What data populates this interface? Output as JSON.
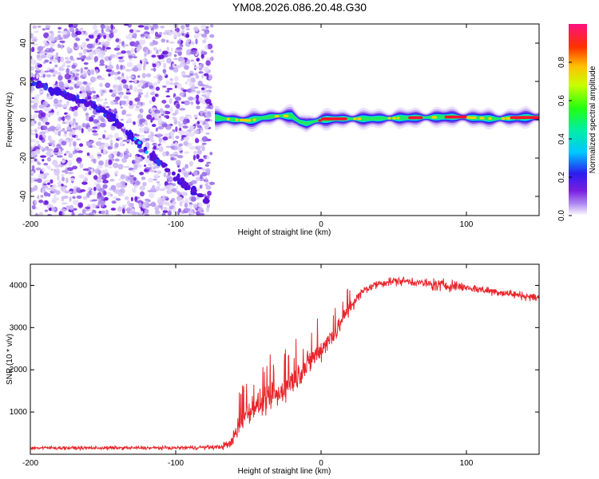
{
  "title": "YM08.2026.086.20.48.G30",
  "chart_data": [
    {
      "type": "heatmap",
      "xlabel": "Height of straight line (km)",
      "ylabel": "Frequency (Hz)",
      "xlim": [
        -200,
        150
      ],
      "ylim": [
        -50,
        50
      ],
      "xticks": [
        -200,
        -100,
        0,
        100
      ],
      "xtick_labels": [
        "-200",
        "-100",
        "0",
        "100"
      ],
      "yticks": [
        -40,
        -20,
        0,
        20,
        40
      ],
      "ytick_labels": [
        "-40",
        "-20",
        "0",
        "20",
        "40"
      ],
      "colorbar": {
        "label": "Normalized spectral amplitude",
        "range": [
          0,
          1
        ],
        "ticks": [
          0.0,
          0.2,
          0.4,
          0.6,
          0.8
        ],
        "tick_labels": [
          "0.0",
          "0.2",
          "0.4",
          "0.6",
          "0.8"
        ]
      },
      "noise_region": {
        "x_range": [
          -200,
          -75
        ],
        "description_level": "low amplitude speckle"
      },
      "diagonal_trace": {
        "x": [
          -200,
          -150,
          -100,
          -75
        ],
        "y": [
          20,
          5,
          -30,
          -45
        ]
      },
      "signal_band": {
        "x": [
          -73,
          -60,
          -50,
          -40,
          -30,
          -20,
          -15,
          -10,
          0,
          10,
          30,
          60,
          90,
          120,
          150
        ],
        "y": [
          1,
          0,
          -0.5,
          1,
          2,
          2,
          -1,
          -2,
          0,
          0.5,
          0.5,
          1,
          1.5,
          0.5,
          1.5
        ]
      }
    },
    {
      "type": "line",
      "xlabel": "Height of straight line (km)",
      "ylabel": "SNR (10 * v/v)",
      "xlim": [
        -200,
        150
      ],
      "ylim": [
        0,
        4500
      ],
      "xticks": [
        -200,
        -100,
        0,
        100
      ],
      "xtick_labels": [
        "-200",
        "-100",
        "0",
        "100"
      ],
      "yticks": [
        1000,
        2000,
        3000,
        4000
      ],
      "ytick_labels": [
        "1000",
        "2000",
        "3000",
        "4000"
      ],
      "series": [
        {
          "name": "SNR",
          "color": "#e8262b",
          "x": [
            -200,
            -150,
            -100,
            -70,
            -62,
            -55,
            -50,
            -45,
            -40,
            -30,
            -20,
            -10,
            0,
            10,
            20,
            30,
            40,
            50,
            60,
            70,
            80,
            90,
            100,
            110,
            120,
            130,
            140,
            150
          ],
          "y": [
            150,
            150,
            150,
            170,
            250,
            800,
            1000,
            1150,
            1200,
            1400,
            1700,
            2100,
            2500,
            2900,
            3500,
            3900,
            4050,
            4100,
            4100,
            4050,
            4000,
            4000,
            3950,
            3900,
            3850,
            3800,
            3750,
            3700
          ],
          "noise_amplitude": [
            60,
            60,
            60,
            80,
            200,
            400,
            450,
            450,
            450,
            500,
            500,
            450,
            400,
            350,
            250,
            150,
            150,
            150,
            150,
            150,
            250,
            200,
            150,
            150,
            150,
            150,
            150,
            150
          ]
        }
      ]
    }
  ]
}
